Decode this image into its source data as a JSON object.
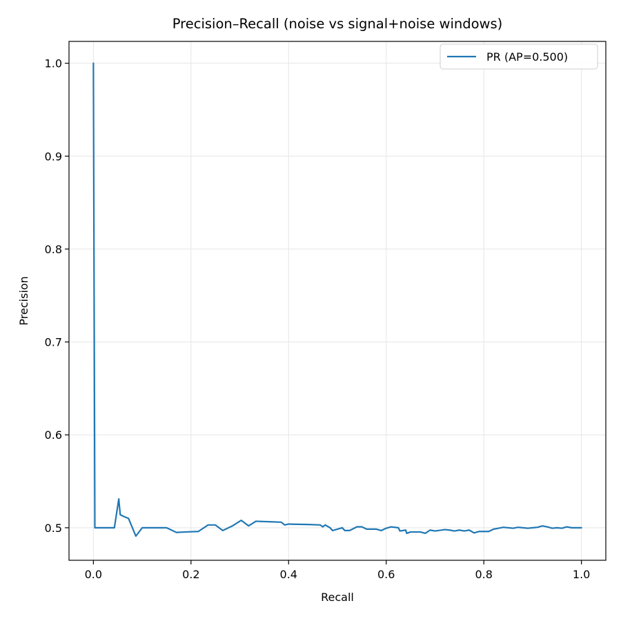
{
  "chart_data": {
    "type": "line",
    "title": "Precision–Recall (noise vs signal+noise windows)",
    "xlabel": "Recall",
    "ylabel": "Precision",
    "xlim": [
      -0.05,
      1.05
    ],
    "ylim": [
      0.465,
      1.0235
    ],
    "xticks": [
      0.0,
      0.2,
      0.4,
      0.6,
      0.8,
      1.0
    ],
    "xtick_labels": [
      "0.0",
      "0.2",
      "0.4",
      "0.6",
      "0.8",
      "1.0"
    ],
    "yticks": [
      0.5,
      0.6,
      0.7,
      0.8,
      0.9,
      1.0
    ],
    "ytick_labels": [
      "0.5",
      "0.6",
      "0.7",
      "0.8",
      "0.9",
      "1.0"
    ],
    "grid": true,
    "legend_position": "upper right",
    "colors": {
      "series": "#1f77b4",
      "grid": "#e5e5e5",
      "axes": "#000000"
    },
    "series": [
      {
        "name": "PR (AP=0.500)",
        "x": [
          0.0,
          0.003,
          0.01,
          0.02,
          0.03,
          0.043,
          0.052,
          0.055,
          0.063,
          0.072,
          0.087,
          0.1,
          0.12,
          0.15,
          0.17,
          0.19,
          0.215,
          0.235,
          0.25,
          0.265,
          0.285,
          0.303,
          0.318,
          0.333,
          0.36,
          0.385,
          0.392,
          0.4,
          0.41,
          0.44,
          0.465,
          0.47,
          0.475,
          0.485,
          0.49,
          0.5,
          0.51,
          0.515,
          0.525,
          0.54,
          0.55,
          0.56,
          0.58,
          0.59,
          0.6,
          0.61,
          0.625,
          0.628,
          0.64,
          0.642,
          0.65,
          0.67,
          0.68,
          0.69,
          0.7,
          0.72,
          0.73,
          0.74,
          0.75,
          0.76,
          0.77,
          0.78,
          0.79,
          0.81,
          0.82,
          0.83,
          0.84,
          0.85,
          0.86,
          0.87,
          0.88,
          0.89,
          0.9,
          0.91,
          0.92,
          0.93,
          0.94,
          0.95,
          0.96,
          0.97,
          0.98,
          0.99,
          1.0
        ],
        "y": [
          1.0,
          0.5,
          0.5,
          0.5,
          0.5,
          0.5,
          0.531,
          0.514,
          0.512,
          0.51,
          0.491,
          0.5,
          0.5,
          0.5,
          0.495,
          0.4955,
          0.496,
          0.503,
          0.503,
          0.497,
          0.502,
          0.508,
          0.502,
          0.507,
          0.5065,
          0.506,
          0.503,
          0.504,
          0.5038,
          0.5035,
          0.503,
          0.501,
          0.503,
          0.5,
          0.497,
          0.4985,
          0.5,
          0.497,
          0.497,
          0.501,
          0.501,
          0.4985,
          0.4985,
          0.497,
          0.4995,
          0.501,
          0.5,
          0.4965,
          0.4975,
          0.494,
          0.4955,
          0.4955,
          0.494,
          0.4975,
          0.4965,
          0.498,
          0.4975,
          0.4965,
          0.4975,
          0.4965,
          0.4975,
          0.4945,
          0.496,
          0.496,
          0.4985,
          0.4995,
          0.5005,
          0.5,
          0.4995,
          0.5005,
          0.5,
          0.4995,
          0.5,
          0.5005,
          0.502,
          0.501,
          0.4995,
          0.5,
          0.4995,
          0.501,
          0.5,
          0.5,
          0.5
        ]
      }
    ]
  }
}
